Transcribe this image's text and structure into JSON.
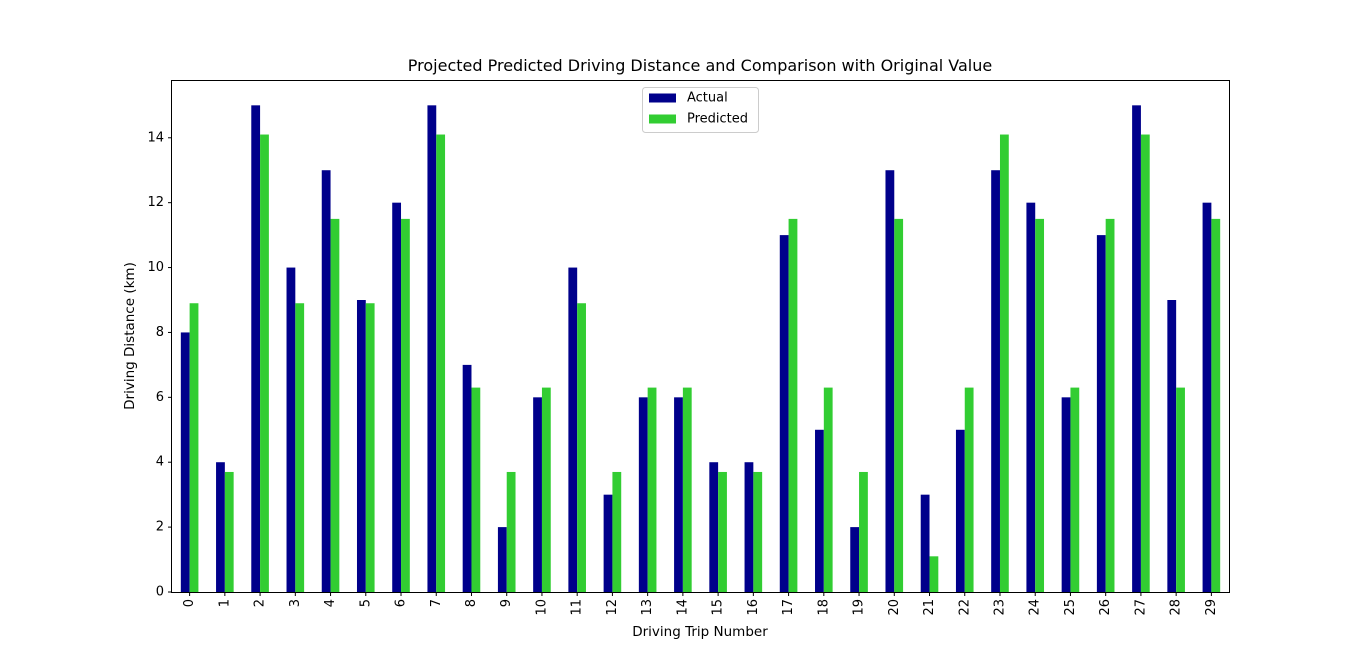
{
  "chart_data": {
    "type": "bar",
    "title": "Projected Predicted Driving Distance and Comparison with Original Value",
    "xlabel": "Driving Trip Number",
    "ylabel": "Driving Distance (km)",
    "categories": [
      "0",
      "1",
      "2",
      "3",
      "4",
      "5",
      "6",
      "7",
      "8",
      "9",
      "10",
      "11",
      "12",
      "13",
      "14",
      "15",
      "16",
      "17",
      "18",
      "19",
      "20",
      "21",
      "22",
      "23",
      "24",
      "25",
      "26",
      "27",
      "28",
      "29"
    ],
    "series": [
      {
        "name": "Actual",
        "color": "#00008b",
        "values": [
          8,
          4,
          15,
          10,
          13,
          9,
          12,
          15,
          7,
          2,
          6,
          10,
          3,
          6,
          6,
          4,
          4,
          11,
          5,
          2,
          13,
          3,
          5,
          13,
          12,
          6,
          11,
          15,
          9,
          12
        ]
      },
      {
        "name": "Predicted",
        "color": "#32cd32",
        "values": [
          8.9,
          3.7,
          14.1,
          8.9,
          11.5,
          8.9,
          11.5,
          14.1,
          6.3,
          3.7,
          6.3,
          8.9,
          3.7,
          6.3,
          6.3,
          3.7,
          3.7,
          11.5,
          6.3,
          3.7,
          11.5,
          1.1,
          6.3,
          14.1,
          11.5,
          6.3,
          11.5,
          14.1,
          6.3,
          11.5
        ]
      }
    ],
    "ylim": [
      0,
      15.75
    ],
    "yticks": [
      0,
      2,
      4,
      6,
      8,
      10,
      12,
      14
    ],
    "grid": false,
    "legend_position": "top-center"
  }
}
